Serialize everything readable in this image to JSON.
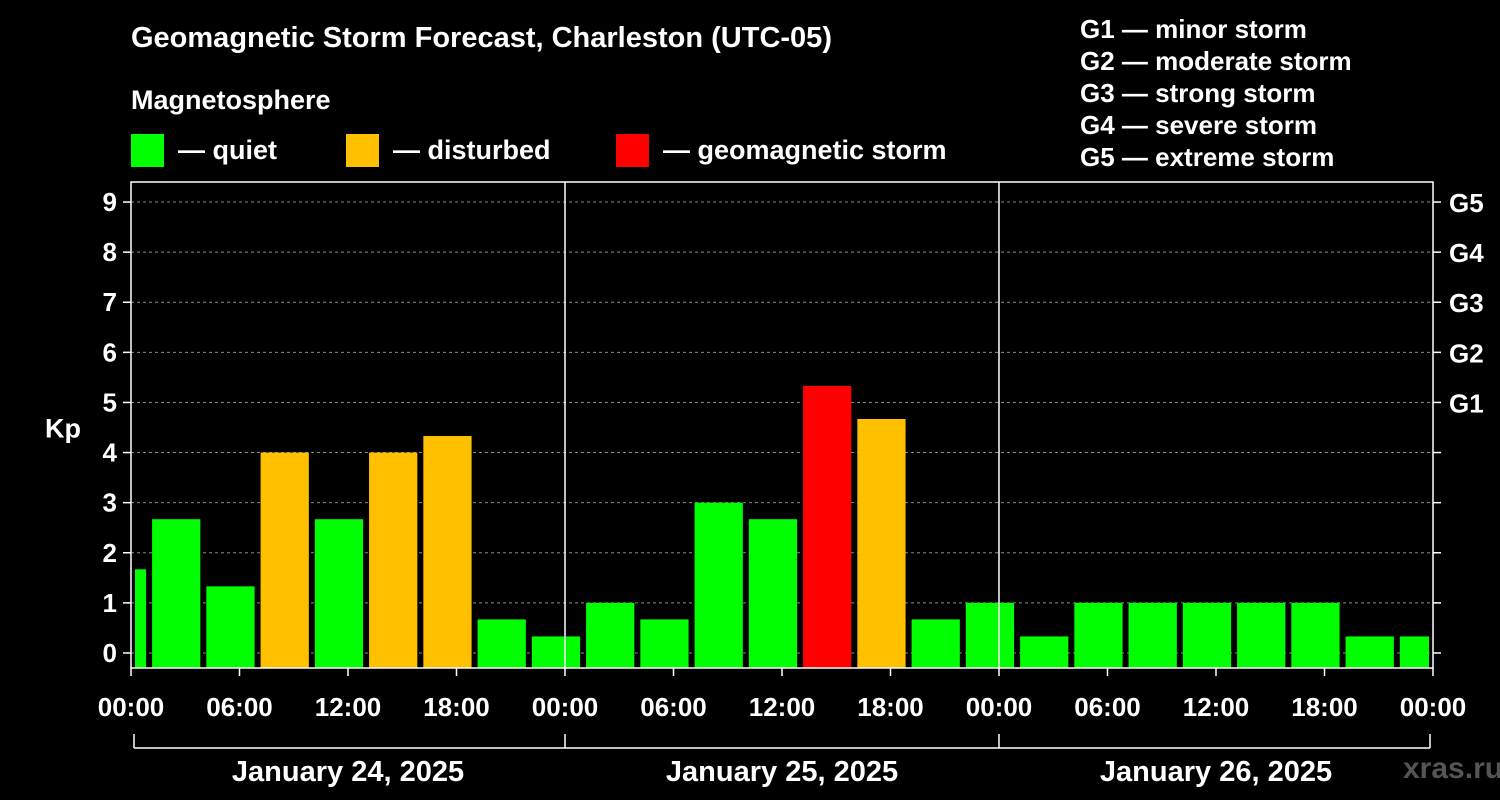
{
  "chart_data": {
    "type": "bar",
    "title": "Geomagnetic Storm Forecast, Charleston (UTC-05)",
    "ylabel": "Kp",
    "ylim": [
      -0.3,
      9.4
    ],
    "y_ticks": [
      0,
      1,
      2,
      3,
      4,
      5,
      6,
      7,
      8,
      9
    ],
    "x_range_hours": [
      0,
      72
    ],
    "x_ticks": [
      "00:00",
      "06:00",
      "12:00",
      "18:00",
      "00:00",
      "06:00",
      "12:00",
      "18:00",
      "00:00",
      "06:00",
      "12:00",
      "18:00",
      "00:00"
    ],
    "days": [
      "January 24, 2025",
      "January 25, 2025",
      "January 26, 2025"
    ],
    "legend_title": "Magnetosphere",
    "legend": [
      {
        "label": "— quiet",
        "color": "#00ff00"
      },
      {
        "label": "— disturbed",
        "color": "#ffc000"
      },
      {
        "label": "— geomagnetic storm",
        "color": "#ff0000"
      }
    ],
    "g_scale": [
      {
        "label": "G1",
        "kp": 5
      },
      {
        "label": "G2",
        "kp": 6
      },
      {
        "label": "G3",
        "kp": 7
      },
      {
        "label": "G4",
        "kp": 8
      },
      {
        "label": "G5",
        "kp": 9
      }
    ],
    "g_descriptions": [
      "G1 — minor storm",
      "G2 — moderate storm",
      "G3 — strong storm",
      "G4 — severe storm",
      "G5 — extreme storm"
    ],
    "bars": [
      {
        "start": 0,
        "end": 1,
        "kp": 1.67,
        "status": "quiet"
      },
      {
        "start": 1,
        "end": 4,
        "kp": 2.67,
        "status": "quiet"
      },
      {
        "start": 4,
        "end": 7,
        "kp": 1.33,
        "status": "quiet"
      },
      {
        "start": 7,
        "end": 10,
        "kp": 4.0,
        "status": "disturbed"
      },
      {
        "start": 10,
        "end": 13,
        "kp": 2.67,
        "status": "quiet"
      },
      {
        "start": 13,
        "end": 16,
        "kp": 4.0,
        "status": "disturbed"
      },
      {
        "start": 16,
        "end": 19,
        "kp": 4.33,
        "status": "disturbed"
      },
      {
        "start": 19,
        "end": 22,
        "kp": 0.67,
        "status": "quiet"
      },
      {
        "start": 22,
        "end": 25,
        "kp": 0.33,
        "status": "quiet"
      },
      {
        "start": 25,
        "end": 28,
        "kp": 1.0,
        "status": "quiet"
      },
      {
        "start": 28,
        "end": 31,
        "kp": 0.67,
        "status": "quiet"
      },
      {
        "start": 31,
        "end": 34,
        "kp": 3.0,
        "status": "quiet"
      },
      {
        "start": 34,
        "end": 37,
        "kp": 2.67,
        "status": "quiet"
      },
      {
        "start": 37,
        "end": 40,
        "kp": 5.33,
        "status": "storm"
      },
      {
        "start": 40,
        "end": 43,
        "kp": 4.67,
        "status": "disturbed"
      },
      {
        "start": 43,
        "end": 46,
        "kp": 0.67,
        "status": "quiet"
      },
      {
        "start": 46,
        "end": 49,
        "kp": 1.0,
        "status": "quiet"
      },
      {
        "start": 49,
        "end": 52,
        "kp": 0.33,
        "status": "quiet"
      },
      {
        "start": 52,
        "end": 55,
        "kp": 1.0,
        "status": "quiet"
      },
      {
        "start": 55,
        "end": 58,
        "kp": 1.0,
        "status": "quiet"
      },
      {
        "start": 58,
        "end": 61,
        "kp": 1.0,
        "status": "quiet"
      },
      {
        "start": 61,
        "end": 64,
        "kp": 1.0,
        "status": "quiet"
      },
      {
        "start": 64,
        "end": 67,
        "kp": 1.0,
        "status": "quiet"
      },
      {
        "start": 67,
        "end": 70,
        "kp": 0.33,
        "status": "quiet"
      },
      {
        "start": 70,
        "end": 72,
        "kp": 0.33,
        "status": "quiet"
      }
    ],
    "status_colors": {
      "quiet": "#00ff00",
      "disturbed": "#ffc000",
      "storm": "#ff0000"
    }
  },
  "watermark": "xras.ru"
}
